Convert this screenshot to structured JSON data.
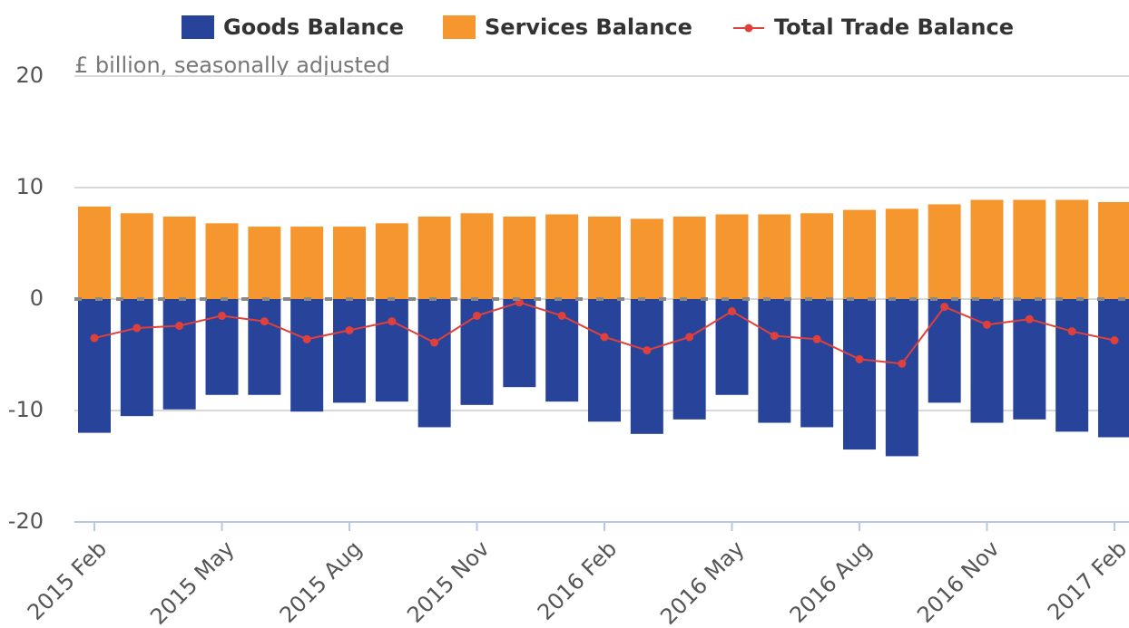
{
  "chart_data": {
    "type": "bar",
    "stacked": true,
    "subtitle": "£ billion, seasonally adjusted",
    "categories": [
      "2015 Feb",
      null,
      null,
      "2015 May",
      null,
      null,
      "2015 Aug",
      null,
      null,
      "2015 Nov",
      null,
      null,
      "2016 Feb",
      null,
      null,
      "2016 May",
      null,
      null,
      "2016 Aug",
      null,
      null,
      "2016 Nov",
      null,
      null,
      "2017 Feb"
    ],
    "series": [
      {
        "name": "Goods Balance",
        "type": "bar",
        "color": "#27449a",
        "values": [
          -12.0,
          -10.5,
          -9.9,
          -8.6,
          -8.6,
          -10.1,
          -9.3,
          -9.2,
          -11.5,
          -9.5,
          -7.9,
          -9.2,
          -11.0,
          -12.1,
          -10.8,
          -8.6,
          -11.1,
          -11.5,
          -13.5,
          -14.1,
          -9.3,
          -11.1,
          -10.8,
          -11.9,
          -12.4
        ]
      },
      {
        "name": "Services Balance",
        "type": "bar",
        "color": "#f5972e",
        "values": [
          8.3,
          7.7,
          7.4,
          6.8,
          6.5,
          6.5,
          6.5,
          6.8,
          7.4,
          7.7,
          7.4,
          7.6,
          7.4,
          7.2,
          7.4,
          7.6,
          7.6,
          7.7,
          8.0,
          8.1,
          8.5,
          8.9,
          8.9,
          8.9,
          8.7
        ]
      },
      {
        "name": "Total Trade Balance",
        "type": "line",
        "color": "#e0403c",
        "values": [
          -3.5,
          -2.6,
          -2.4,
          -1.5,
          -2.0,
          -3.6,
          -2.8,
          -2.0,
          -3.9,
          -1.5,
          -0.3,
          -1.5,
          -3.4,
          -4.6,
          -3.4,
          -1.1,
          -3.3,
          -3.6,
          -5.4,
          -5.8,
          -0.7,
          -2.3,
          -1.8,
          -2.9,
          -3.7
        ]
      }
    ],
    "ylim": [
      -20,
      20
    ],
    "yticks": [
      -20,
      -10,
      0,
      10,
      20
    ],
    "grid": true
  }
}
